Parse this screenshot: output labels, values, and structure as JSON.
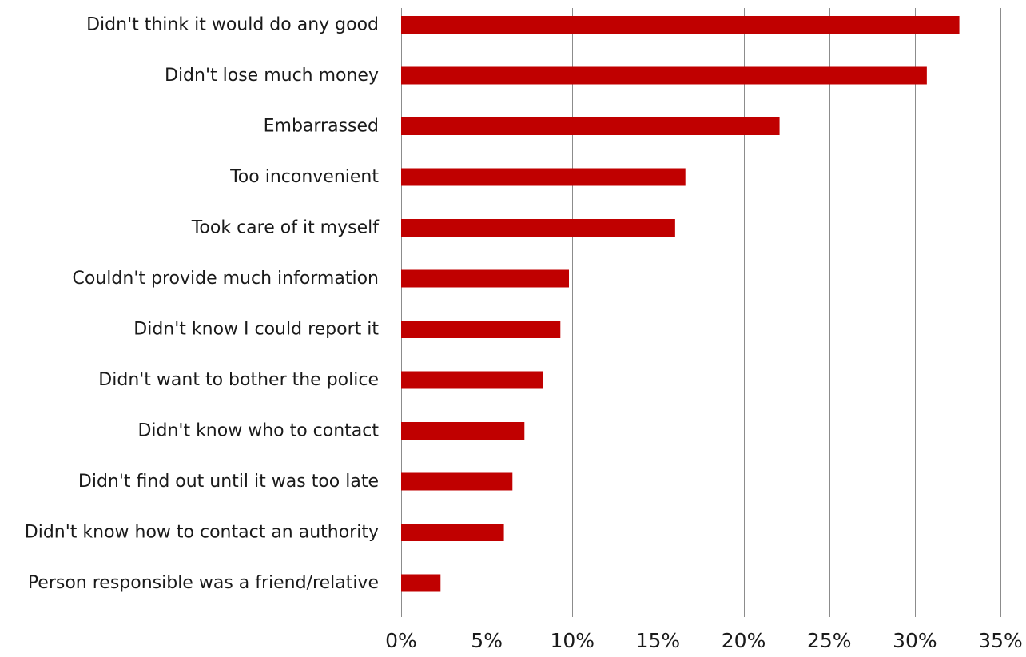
{
  "chart_data": {
    "type": "bar",
    "orientation": "horizontal",
    "title": "",
    "xlabel": "",
    "ylabel": "",
    "categories": [
      "Didn't think it would do any good",
      "Didn't lose much money",
      "Embarrassed",
      "Too inconvenient",
      "Took care of it myself",
      "Couldn't provide much information",
      "Didn't know I could report it",
      "Didn't want to bother the police",
      "Didn't know who to contact",
      "Didn't find out until it was too late",
      "Didn't know how to contact an authority",
      "Person responsible was a friend/relative"
    ],
    "values": [
      32.6,
      30.7,
      22.1,
      16.6,
      16.0,
      9.8,
      9.3,
      8.3,
      7.2,
      6.5,
      6.0,
      2.3
    ],
    "xlim": [
      0,
      35
    ],
    "x_ticks": [
      0,
      5,
      10,
      15,
      20,
      25,
      30,
      35
    ],
    "x_tick_labels": [
      "0%",
      "5%",
      "10%",
      "15%",
      "20%",
      "25%",
      "30%",
      "35%"
    ],
    "bar_color": "#c00000",
    "grid": true,
    "legend": "none"
  }
}
